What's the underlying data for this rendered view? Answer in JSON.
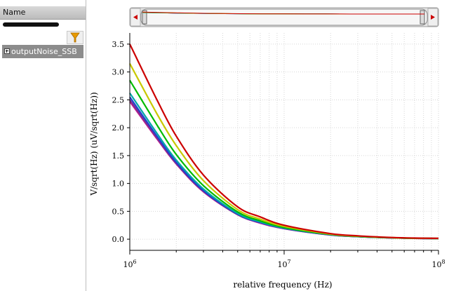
{
  "sidebar": {
    "header_label": "Name",
    "tree": [
      {
        "label": "outputNoise_SSB",
        "expanded": false
      }
    ]
  },
  "icons": {
    "filter": "filter-icon",
    "expand": "plus-box-icon",
    "scroll_left": "arrow-left-icon",
    "scroll_right": "arrow-right-icon"
  },
  "colors": {
    "accent_red": "#cc0000",
    "filter_icon": "#e89a00"
  },
  "chart_data": {
    "type": "line",
    "xlabel": "relative frequency (Hz)",
    "ylabel": "V/sqrt(Hz) (uV/sqrt(Hz))",
    "x_scale": "log",
    "xlim": [
      1000000,
      100000000
    ],
    "ylim": [
      -0.2,
      3.7
    ],
    "x_ticks": [
      {
        "base": "10",
        "exp": "6",
        "value": 1000000
      },
      {
        "base": "10",
        "exp": "7",
        "value": 10000000
      },
      {
        "base": "10",
        "exp": "8",
        "value": 100000000
      }
    ],
    "y_ticks": [
      "0.0",
      "0.5",
      "1.0",
      "1.5",
      "2.0",
      "2.5",
      "3.0",
      "3.5"
    ],
    "grid": true,
    "x": [
      1000000,
      1500000,
      2000000,
      3000000,
      5000000,
      7000000,
      10000000,
      20000000,
      30000000,
      50000000,
      70000000,
      100000000
    ],
    "series": [
      {
        "color": "#cc0000",
        "values": [
          3.5,
          2.5,
          1.85,
          1.15,
          0.58,
          0.4,
          0.25,
          0.1,
          0.06,
          0.03,
          0.02,
          0.015
        ]
      },
      {
        "color": "#c8c800",
        "values": [
          3.15,
          2.25,
          1.68,
          1.05,
          0.53,
          0.36,
          0.23,
          0.09,
          0.055,
          0.028,
          0.018,
          0.014
        ]
      },
      {
        "color": "#00bb00",
        "values": [
          2.85,
          2.05,
          1.52,
          0.96,
          0.49,
          0.33,
          0.21,
          0.085,
          0.05,
          0.026,
          0.017,
          0.013
        ]
      },
      {
        "color": "#00a8a8",
        "values": [
          2.62,
          1.9,
          1.42,
          0.9,
          0.46,
          0.31,
          0.2,
          0.08,
          0.048,
          0.025,
          0.016,
          0.012
        ]
      },
      {
        "color": "#2040d0",
        "values": [
          2.55,
          1.85,
          1.38,
          0.87,
          0.45,
          0.3,
          0.195,
          0.078,
          0.047,
          0.024,
          0.016,
          0.012
        ]
      },
      {
        "color": "#7a3090",
        "values": [
          2.5,
          1.82,
          1.36,
          0.86,
          0.44,
          0.3,
          0.19,
          0.077,
          0.046,
          0.024,
          0.015,
          0.012
        ]
      },
      {
        "color": "#c01890",
        "values": [
          2.47,
          1.8,
          1.35,
          0.85,
          0.44,
          0.29,
          0.19,
          0.076,
          0.046,
          0.024,
          0.015,
          0.012
        ]
      }
    ]
  }
}
